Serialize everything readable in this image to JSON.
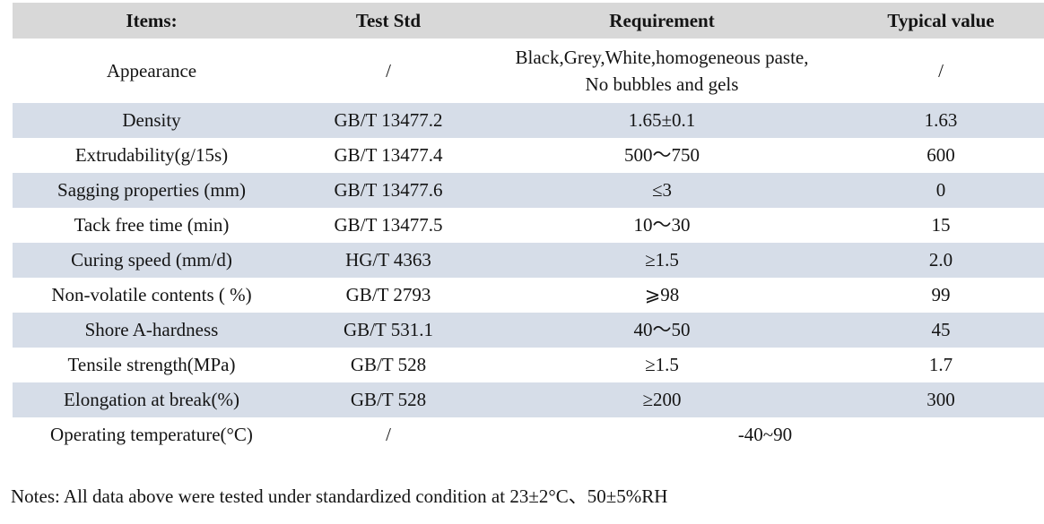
{
  "table": {
    "headers": {
      "items": "Items:",
      "test_std": "Test Std",
      "requirement": "Requirement",
      "typical_value": "Typical value"
    },
    "rows": [
      {
        "item": "Appearance",
        "std": "/",
        "req": "Black,Grey,White,homogeneous paste, No bubbles and gels",
        "typ": "/"
      },
      {
        "item": "Density",
        "std": "GB/T 13477.2",
        "req": "1.65±0.1",
        "typ": "1.63"
      },
      {
        "item": "Extrudability(g/15s)",
        "std": "GB/T 13477.4",
        "req": "500～750",
        "typ": "600"
      },
      {
        "item": "Sagging properties (mm)",
        "std": "GB/T 13477.6",
        "req": "≤3",
        "typ": "0"
      },
      {
        "item": "Tack free time (min)",
        "std": "GB/T 13477.5",
        "req": "10～30",
        "typ": "15"
      },
      {
        "item": "Curing speed (mm/d)",
        "std": "HG/T 4363",
        "req": "≥1.5",
        "typ": "2.0"
      },
      {
        "item": "Non-volatile contents ( %)",
        "std": "GB/T 2793",
        "req": "⩾98",
        "typ": "99"
      },
      {
        "item": "Shore A-hardness",
        "std": "GB/T 531.1",
        "req": "40～50",
        "typ": "45"
      },
      {
        "item": "Tensile strength(MPa)",
        "std": "GB/T 528",
        "req": "≥1.5",
        "typ": "1.7"
      },
      {
        "item": "Elongation at break(%)",
        "std": "GB/T 528",
        "req": "≥200",
        "typ": "300"
      },
      {
        "item": "Operating temperature(°C)",
        "std": "/",
        "req": "-40~90"
      }
    ]
  },
  "notes": "Notes: All data above were tested under standardized condition at 23±2°C、50±5%RH",
  "colors": {
    "header_row_bg": "#d8d8d8",
    "banded_row_bg": "#d6dde8",
    "text": "#141414",
    "background": "#ffffff"
  }
}
